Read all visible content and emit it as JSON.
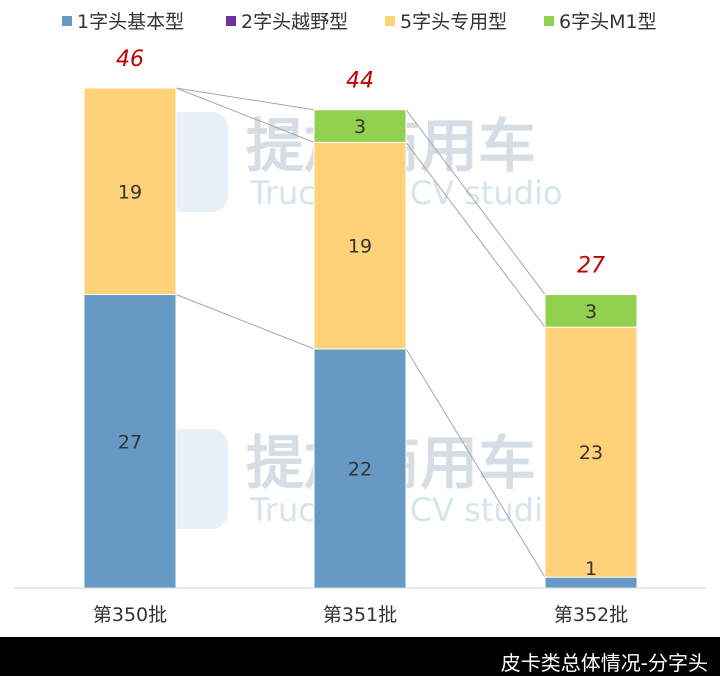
{
  "chart_data": {
    "type": "bar",
    "stacked": true,
    "categories": [
      "第350批",
      "第351批",
      "第352批"
    ],
    "series": [
      {
        "name": "1字头基本型",
        "color": "#6699c4",
        "values": [
          27,
          22,
          1
        ]
      },
      {
        "name": "2字头越野型",
        "color": "#7030a0",
        "values": [
          0,
          0,
          0
        ]
      },
      {
        "name": "5字头专用型",
        "color": "#ffd27a",
        "values": [
          19,
          19,
          23
        ]
      },
      {
        "name": "6字头M1型",
        "color": "#92d050",
        "values": [
          0,
          3,
          3
        ]
      }
    ],
    "totals": [
      "46",
      "44",
      "27"
    ],
    "ylim": [
      0,
      50
    ],
    "legend_position": "top",
    "grid": false,
    "connector_lines": true
  },
  "watermark": {
    "text_cn": "提加商用车",
    "text_en": "TruckPlus CV studio"
  },
  "footer": {
    "text": "皮卡类总体情况-分字头"
  }
}
